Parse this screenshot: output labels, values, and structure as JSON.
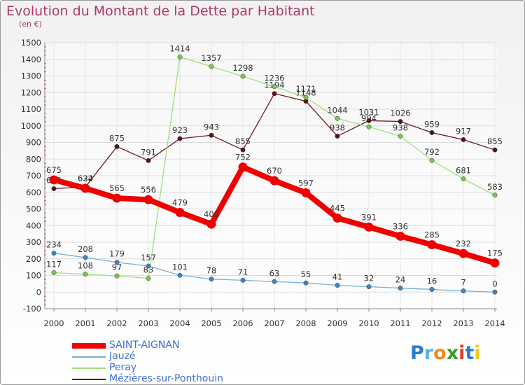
{
  "title": "Evolution du Montant de la Dette par Habitant",
  "subtitle": "(en €)",
  "logo": {
    "text": "Proxiti",
    "letter_colors": [
      "#2a7fc9",
      "#5bb0e8",
      "#f08a1c",
      "#3a9c2a",
      "#e33c2a",
      "#2a7fc9",
      "#f2c81c"
    ]
  },
  "chart_data": {
    "type": "line",
    "x": [
      2000,
      2001,
      2002,
      2003,
      2004,
      2005,
      2006,
      2007,
      2008,
      2009,
      2010,
      2011,
      2012,
      2013,
      2014
    ],
    "ylim": [
      -100,
      1500
    ],
    "yticks": [
      -100,
      0,
      100,
      200,
      300,
      400,
      500,
      600,
      700,
      800,
      900,
      1000,
      1100,
      1200,
      1300,
      1400,
      1500
    ],
    "grid": true,
    "legend_position": "bottom-left",
    "series": [
      {
        "name": "Mézières-sur-Ponthouin",
        "color": "#6b1a1f",
        "marker": "#5a1218",
        "width": 1.3,
        "values": [
          622,
          632,
          875,
          791,
          923,
          943,
          855,
          1194,
          1148,
          938,
          1031,
          1026,
          959,
          917,
          855
        ]
      },
      {
        "name": "Peray",
        "color": "#9fe07a",
        "marker": "#79c94c",
        "width": 1.3,
        "values": [
          117,
          108,
          97,
          83,
          1414,
          1357,
          1298,
          1236,
          1171,
          1044,
          994,
          938,
          792,
          681,
          583
        ]
      },
      {
        "name": "Jauzé",
        "color": "#7ab0d8",
        "marker": "#3d86c6",
        "width": 1.3,
        "values": [
          234,
          208,
          179,
          157,
          101,
          78,
          71,
          63,
          55,
          41,
          32,
          24,
          16,
          7,
          0
        ]
      },
      {
        "name": "SAINT-AIGNAN",
        "color": "#ee0000",
        "marker": "#ee0000",
        "width": 8,
        "values": [
          675,
          624,
          565,
          556,
          479,
          409,
          752,
          670,
          597,
          445,
          391,
          336,
          285,
          232,
          175
        ]
      }
    ],
    "legend_order": [
      "SAINT-AIGNAN",
      "Jauzé",
      "Peray",
      "Mézières-sur-Ponthouin"
    ]
  }
}
